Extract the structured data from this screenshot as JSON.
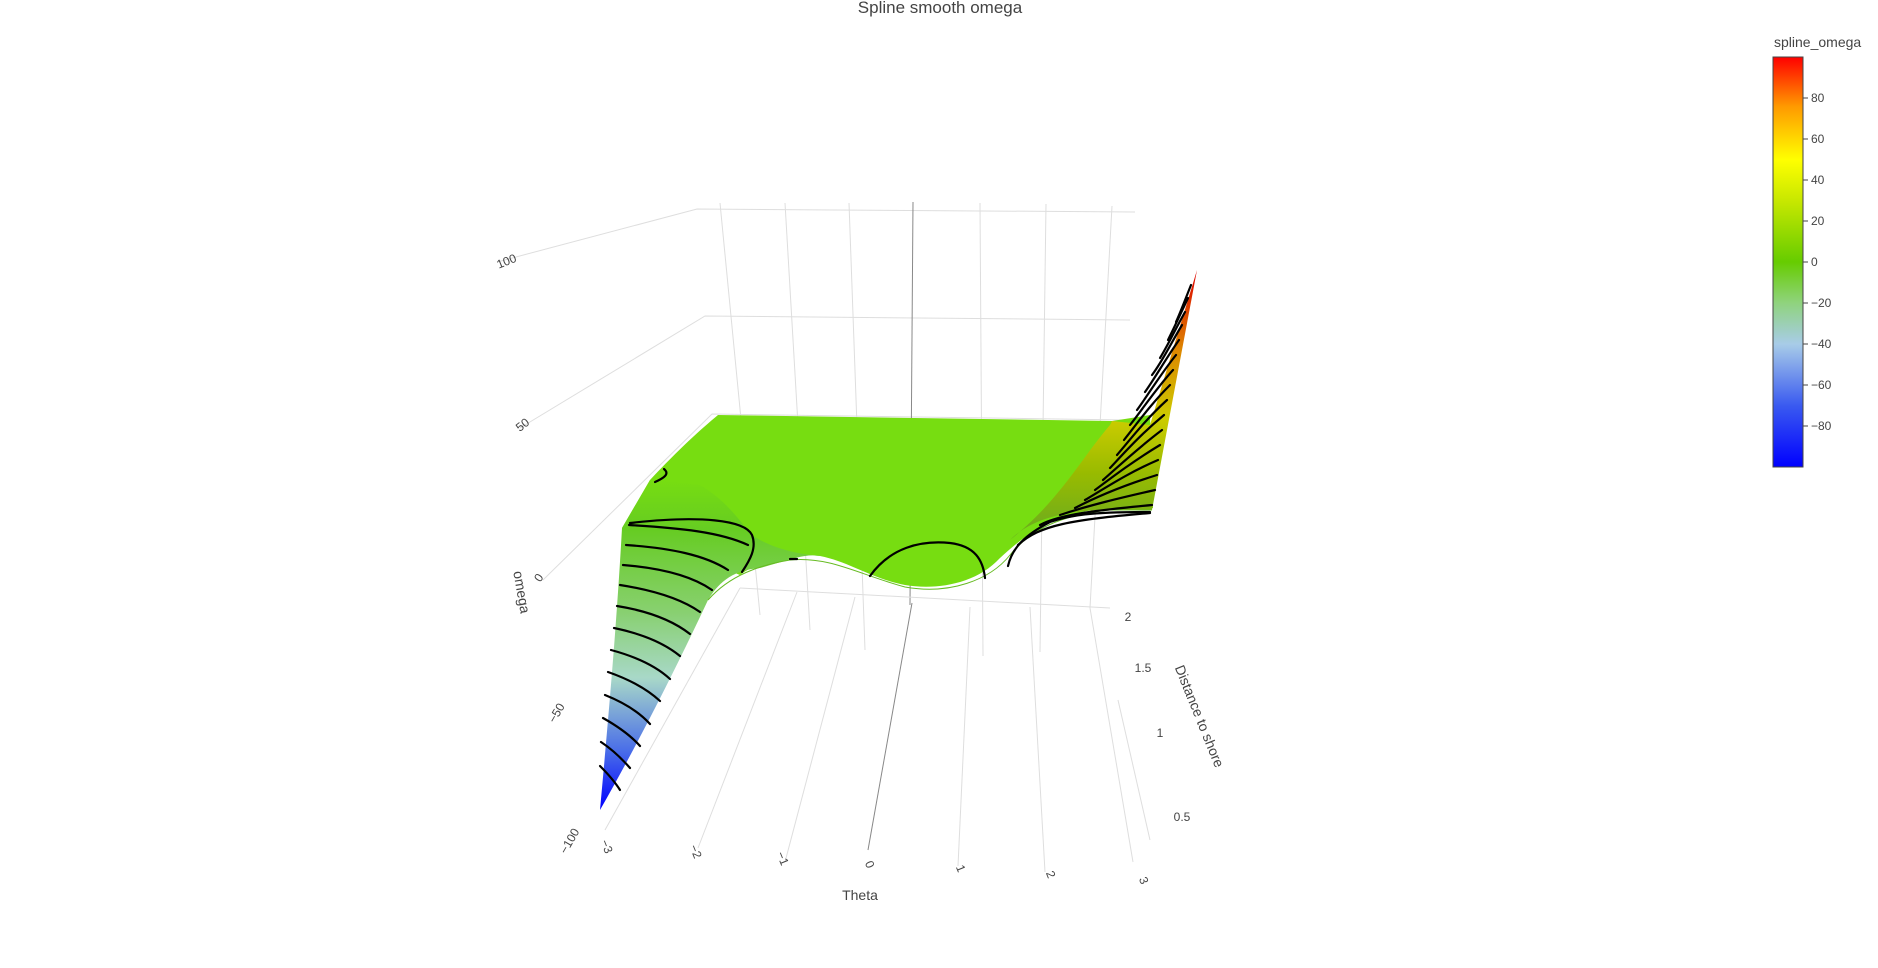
{
  "chart_data": {
    "type": "surface",
    "title": "Spline smooth omega",
    "xlabel": "Theta",
    "ylabel": "Distance to shore",
    "zlabel": "omega",
    "x_ticks": [
      "−3",
      "−2",
      "−1",
      "0",
      "1",
      "2",
      "3"
    ],
    "y_ticks": [
      "0.5",
      "1",
      "1.5",
      "2"
    ],
    "z_ticks": [
      "−100",
      "−50",
      "0",
      "50",
      "100"
    ],
    "xlim": [
      -3,
      3
    ],
    "ylim": [
      0.5,
      2
    ],
    "zlim": [
      -100,
      100
    ],
    "colorbar": {
      "title": "spline_omega",
      "range": [
        -100,
        100
      ],
      "ticks": [
        "80",
        "60",
        "40",
        "20",
        "0",
        "−20",
        "−40",
        "−60",
        "−80"
      ],
      "colorscale": [
        "#0000ff",
        "#3050e8",
        "#a8c8e8",
        "#88d088",
        "#66cc00",
        "#ffff00",
        "#ffa500",
        "#ff0000"
      ]
    },
    "surface_profile": {
      "theta": [
        -3,
        -2,
        -1,
        0,
        1,
        2,
        3
      ],
      "omega_near_edge": [
        -100,
        -5,
        -2,
        -6,
        -10,
        0,
        100
      ],
      "omega_plateau": 0
    },
    "contours": "black iso-lines at omega steps of 5",
    "grid": true
  }
}
